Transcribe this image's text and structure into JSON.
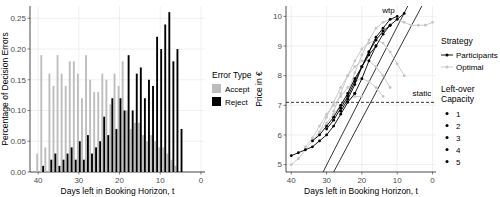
{
  "chart_data": [
    {
      "type": "bar",
      "x_label": "Days left in Booking Horizon, t",
      "y_label": "Percentage of Decision Errors",
      "x": [
        40,
        39,
        38,
        37,
        36,
        35,
        34,
        33,
        32,
        31,
        30,
        29,
        28,
        27,
        26,
        25,
        24,
        23,
        22,
        21,
        20,
        19,
        18,
        17,
        16,
        15,
        14,
        13,
        12,
        11,
        10,
        9,
        8,
        7,
        6,
        5
      ],
      "series": [
        {
          "name": "Accept",
          "color": "#bdbdbd",
          "values": [
            0.03,
            0.19,
            0.04,
            0.16,
            0.14,
            0.19,
            0.16,
            0.14,
            0.18,
            0.18,
            0.16,
            0.12,
            0.19,
            0.15,
            0.13,
            0.13,
            0.16,
            0.15,
            0.11,
            0.16,
            0.14,
            0.18,
            0.1,
            0.07,
            0.08,
            0.08,
            0.06,
            0.05,
            0.06,
            0.05,
            0.04,
            0.04,
            0.03,
            0.02,
            0.01,
            0
          ]
        },
        {
          "name": "Reject",
          "color": "#000000",
          "values": [
            0,
            0.01,
            0,
            0.02,
            0.03,
            0.01,
            0.02,
            0.03,
            0.04,
            0.02,
            0.05,
            0.02,
            0.06,
            0.03,
            0.04,
            0.05,
            0.09,
            0.06,
            0.12,
            0.07,
            0.12,
            0.1,
            0.19,
            0.1,
            0.16,
            0.17,
            0.12,
            0.15,
            0.14,
            0.22,
            0.2,
            0.24,
            0.26,
            0.18,
            0.2,
            0.07
          ]
        }
      ],
      "xlim": [
        42,
        -1
      ],
      "xticks": [
        40,
        30,
        20,
        10,
        0
      ],
      "ylim": [
        0,
        0.27
      ],
      "yticks": [
        {
          "value": 0,
          "label": "0.00"
        },
        {
          "value": 0.05,
          "label": "0.05"
        },
        {
          "value": 0.1,
          "label": "0.10"
        },
        {
          "value": 0.15,
          "label": "0.15"
        },
        {
          "value": 0.2,
          "label": "0.20"
        },
        {
          "value": 0.25,
          "label": "0.25"
        }
      ],
      "grid": true,
      "legend": "right",
      "legend_title": "Error Type"
    },
    {
      "type": "line",
      "x_label": "Days left in Booking Horizon, t",
      "y_label": "Price in €",
      "xlim": [
        41.5,
        -1
      ],
      "xticks": [
        40,
        30,
        20,
        10,
        0
      ],
      "ylim": [
        4.75,
        10.35
      ],
      "yticks": [
        5,
        6,
        7,
        8,
        9,
        10
      ],
      "grid": true,
      "legend": "right",
      "legend_title": "Strategy",
      "strategies": [
        "Participants",
        "Optimal"
      ],
      "capacity_title": "Left-over Capacity",
      "capacities": [
        1,
        2,
        3,
        4,
        5
      ],
      "series": [
        {
          "name": "Optimal",
          "capacity": 5,
          "color": "#c4c4c4",
          "marker": "circle",
          "x": [
            40,
            38,
            36,
            34,
            32,
            30,
            28,
            26,
            24,
            22,
            20
          ],
          "values": [
            5.0,
            5.2,
            5.5,
            5.8,
            6.1,
            6.4,
            6.7,
            7.0,
            7.2,
            7.3,
            7.3
          ]
        },
        {
          "name": "Optimal",
          "capacity": 4,
          "color": "#c4c4c4",
          "marker": "circle",
          "x": [
            36,
            34,
            32,
            30,
            28,
            26,
            24,
            22,
            20,
            18,
            16,
            14
          ],
          "values": [
            5.6,
            5.9,
            6.3,
            6.7,
            7.0,
            7.3,
            7.6,
            7.8,
            7.9,
            7.8,
            7.6,
            7.3
          ]
        },
        {
          "name": "Optimal",
          "capacity": 3,
          "color": "#c4c4c4",
          "marker": "circle",
          "x": [
            32,
            30,
            28,
            26,
            24,
            22,
            20,
            18,
            16,
            14,
            12
          ],
          "values": [
            6.1,
            6.6,
            7.1,
            7.6,
            8.0,
            8.3,
            8.5,
            8.5,
            8.3,
            8.0,
            7.6
          ]
        },
        {
          "name": "Optimal",
          "capacity": 2,
          "color": "#c4c4c4",
          "marker": "circle",
          "x": [
            28,
            26,
            24,
            22,
            20,
            18,
            16,
            14,
            12,
            10,
            8
          ],
          "values": [
            6.8,
            7.4,
            8.0,
            8.5,
            8.9,
            9.1,
            9.2,
            9.1,
            8.8,
            8.4,
            8.0
          ]
        },
        {
          "name": "Optimal",
          "capacity": 1,
          "color": "#c4c4c4",
          "marker": "circle",
          "x": [
            24,
            22,
            20,
            18,
            16,
            14,
            12,
            10,
            8,
            6,
            4,
            2,
            0
          ],
          "values": [
            7.4,
            8.1,
            8.7,
            9.2,
            9.6,
            9.8,
            9.9,
            9.9,
            9.8,
            9.7,
            9.7,
            9.7,
            9.8
          ]
        },
        {
          "name": "Participants",
          "capacity": 5,
          "color": "#000000",
          "marker": "circle",
          "x": [
            40,
            38,
            36,
            34,
            32,
            30,
            28,
            26,
            24,
            22
          ],
          "values": [
            5.3,
            5.4,
            5.5,
            5.6,
            5.8,
            6.0,
            6.3,
            6.7,
            7.1,
            7.4
          ]
        },
        {
          "name": "Participants",
          "capacity": 4,
          "color": "#000000",
          "marker": "circle",
          "x": [
            34,
            32,
            30,
            28,
            26,
            24,
            22,
            20,
            18,
            16
          ],
          "values": [
            5.8,
            6.0,
            6.3,
            6.6,
            7.0,
            7.4,
            7.9,
            8.3,
            8.7,
            9.0
          ]
        },
        {
          "name": "Participants",
          "capacity": 3,
          "color": "#000000",
          "marker": "circle",
          "x": [
            30,
            28,
            26,
            24,
            22,
            20,
            18,
            16,
            14,
            12
          ],
          "values": [
            6.2,
            6.5,
            6.9,
            7.3,
            7.8,
            8.3,
            8.8,
            9.2,
            9.5,
            9.7
          ]
        },
        {
          "name": "Participants",
          "capacity": 2,
          "color": "#000000",
          "marker": "circle",
          "x": [
            26,
            24,
            22,
            20,
            18,
            16,
            14,
            12,
            10
          ],
          "values": [
            6.8,
            7.2,
            7.7,
            8.3,
            8.8,
            9.3,
            9.6,
            9.9,
            10.0
          ]
        },
        {
          "name": "Participants",
          "capacity": 1,
          "color": "#000000",
          "marker": "circle",
          "x": [
            22,
            20,
            18,
            16,
            14,
            12,
            10,
            8
          ],
          "values": [
            7.4,
            7.9,
            8.5,
            9.0,
            9.4,
            9.7,
            9.9,
            10.1
          ]
        }
      ],
      "reference_lines": [
        {
          "label": "wtp",
          "label_x": 12.5,
          "label_y": 10.1,
          "color": "#000000",
          "line_style": "solid",
          "lines": [
            {
              "x": [
                31,
                7
              ],
              "values": [
                4.75,
                10.35
              ]
            },
            {
              "x": [
                28,
                3
              ],
              "values": [
                4.75,
                10.35
              ]
            }
          ]
        },
        {
          "label": "static",
          "label_x": 3,
          "label_y": 7.3,
          "color": "#000000",
          "line_style": "dashed",
          "value": 7.1
        }
      ]
    }
  ]
}
